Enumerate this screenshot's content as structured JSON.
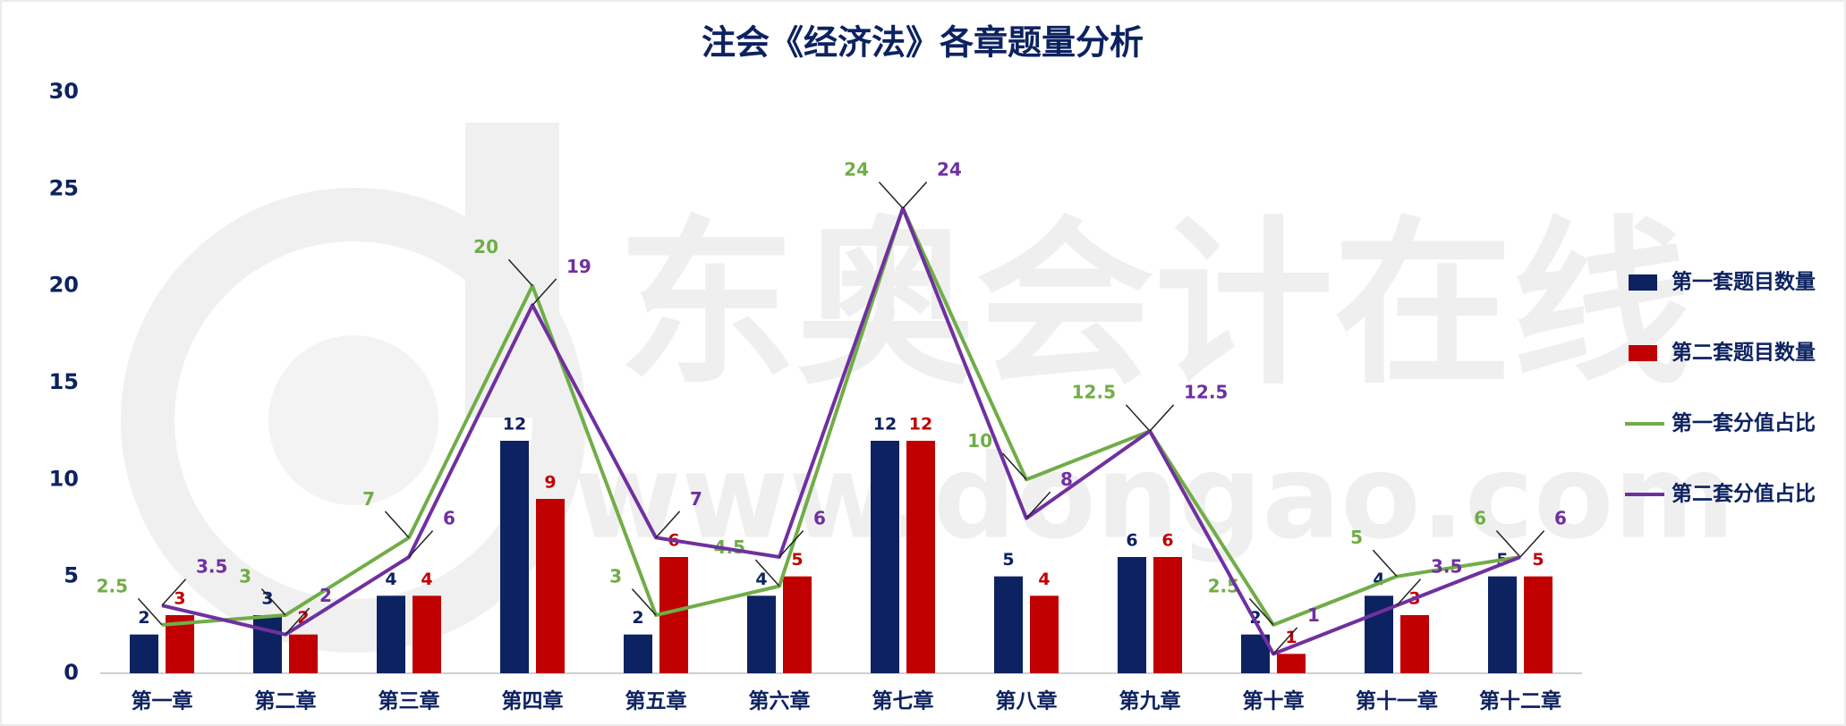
{
  "chart_data": {
    "type": "bar",
    "title": "注会《经济法》各章题量分析",
    "watermark": [
      "东奥会计在线",
      "www.dongao.com"
    ],
    "categories": [
      "第一章",
      "第二章",
      "第三章",
      "第四章",
      "第五章",
      "第六章",
      "第七章",
      "第八章",
      "第九章",
      "第十章",
      "第十一章",
      "第十二章"
    ],
    "series": [
      {
        "name": "第一套题目数量",
        "type": "bar",
        "color": "#0d2260",
        "values": [
          2,
          3,
          4,
          12,
          2,
          4,
          12,
          5,
          6,
          2,
          4,
          5
        ]
      },
      {
        "name": "第二套题目数量",
        "type": "bar",
        "color": "#c00000",
        "values": [
          3,
          2,
          4,
          9,
          6,
          5,
          12,
          4,
          6,
          1,
          3,
          5
        ]
      },
      {
        "name": "第一套分值占比",
        "type": "line",
        "color": "#70ad47",
        "values": [
          2.5,
          3,
          7,
          20,
          3,
          4.5,
          24,
          10,
          12.5,
          2.5,
          5,
          6
        ]
      },
      {
        "name": "第二套分值占比",
        "type": "line",
        "color": "#7030a0",
        "values": [
          3.5,
          2,
          6,
          19,
          7,
          6,
          24,
          8,
          12.5,
          1,
          3.5,
          6
        ]
      }
    ],
    "ylim": [
      0,
      30
    ],
    "yticks": [
      0,
      5,
      10,
      15,
      20,
      25,
      30
    ],
    "grid": false,
    "legend": "right"
  }
}
